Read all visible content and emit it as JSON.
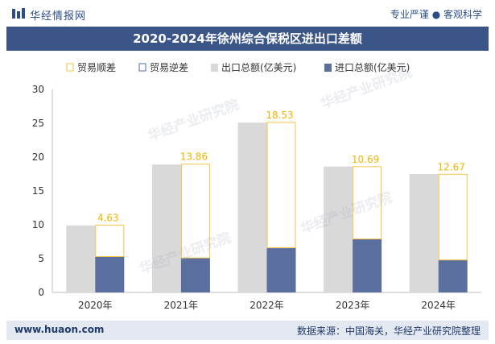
{
  "header": {
    "brand": "华经情报网",
    "slogan": "专业严谨 ● 客观科学"
  },
  "title": "2020-2024年徐州综合保税区进出口差额",
  "footer": {
    "site": "www.huaon.com",
    "source": "数据来源：中国海关，华经产业研究院整理"
  },
  "watermark": "华经产业研究院",
  "colors": {
    "export": "#d9d9d9",
    "import": "#5a6f9e",
    "surplus_outline": "#f5c344",
    "deficit_outline": "#4a6fa5",
    "label": "#f0b400",
    "title_band": "#3b5588"
  },
  "chart_data": {
    "type": "bar",
    "categories": [
      "2020年",
      "2021年",
      "2022年",
      "2023年",
      "2024年"
    ],
    "series": [
      {
        "name": "出口总额(亿美元)",
        "values": [
          9.9,
          18.9,
          25.1,
          18.6,
          17.5
        ]
      },
      {
        "name": "进口总额(亿美元)",
        "values": [
          5.3,
          5.1,
          6.6,
          7.9,
          4.8
        ]
      }
    ],
    "balance": {
      "surplus_name": "贸易顺差",
      "deficit_name": "贸易逆差",
      "values": [
        4.63,
        13.86,
        18.53,
        10.69,
        12.67
      ],
      "labels": [
        "4.63",
        "13.86",
        "18.53",
        "10.69",
        "12.67"
      ]
    },
    "legend": [
      "贸易顺差",
      "贸易逆差",
      "出口总额(亿美元)",
      "进口总额(亿美元)"
    ],
    "legend_position": "top",
    "ylim": [
      0,
      30
    ],
    "yticks": [
      "0",
      "5",
      "10",
      "15",
      "20",
      "25",
      "30"
    ],
    "grid": false
  }
}
